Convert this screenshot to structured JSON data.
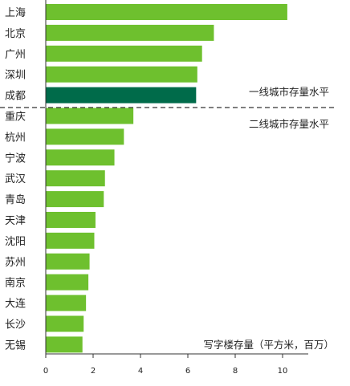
{
  "chart_data": {
    "type": "bar",
    "orientation": "horizontal",
    "categories": [
      "上海",
      "北京",
      "广州",
      "深圳",
      "成都",
      "重庆",
      "杭州",
      "宁波",
      "武汉",
      "青岛",
      "天津",
      "沈阳",
      "苏州",
      "南京",
      "大连",
      "长沙",
      "无锡"
    ],
    "values": [
      10.2,
      7.1,
      6.6,
      6.4,
      6.35,
      3.7,
      3.3,
      2.9,
      2.5,
      2.45,
      2.1,
      2.05,
      1.85,
      1.8,
      1.7,
      1.6,
      1.55
    ],
    "highlight_index": 4,
    "xlim": [
      0,
      11
    ],
    "xticks": [
      0,
      2,
      4,
      6,
      8,
      10
    ],
    "grid": false,
    "annotations": {
      "tier1": "一线城市存量水平",
      "tier2": "二线城市存量水平",
      "unit": "写字楼存量（平方米，百万）"
    },
    "colors": {
      "bar": "#6ec02e",
      "highlight": "#006b4a",
      "divider": "#333333",
      "axis": "#333333"
    }
  }
}
